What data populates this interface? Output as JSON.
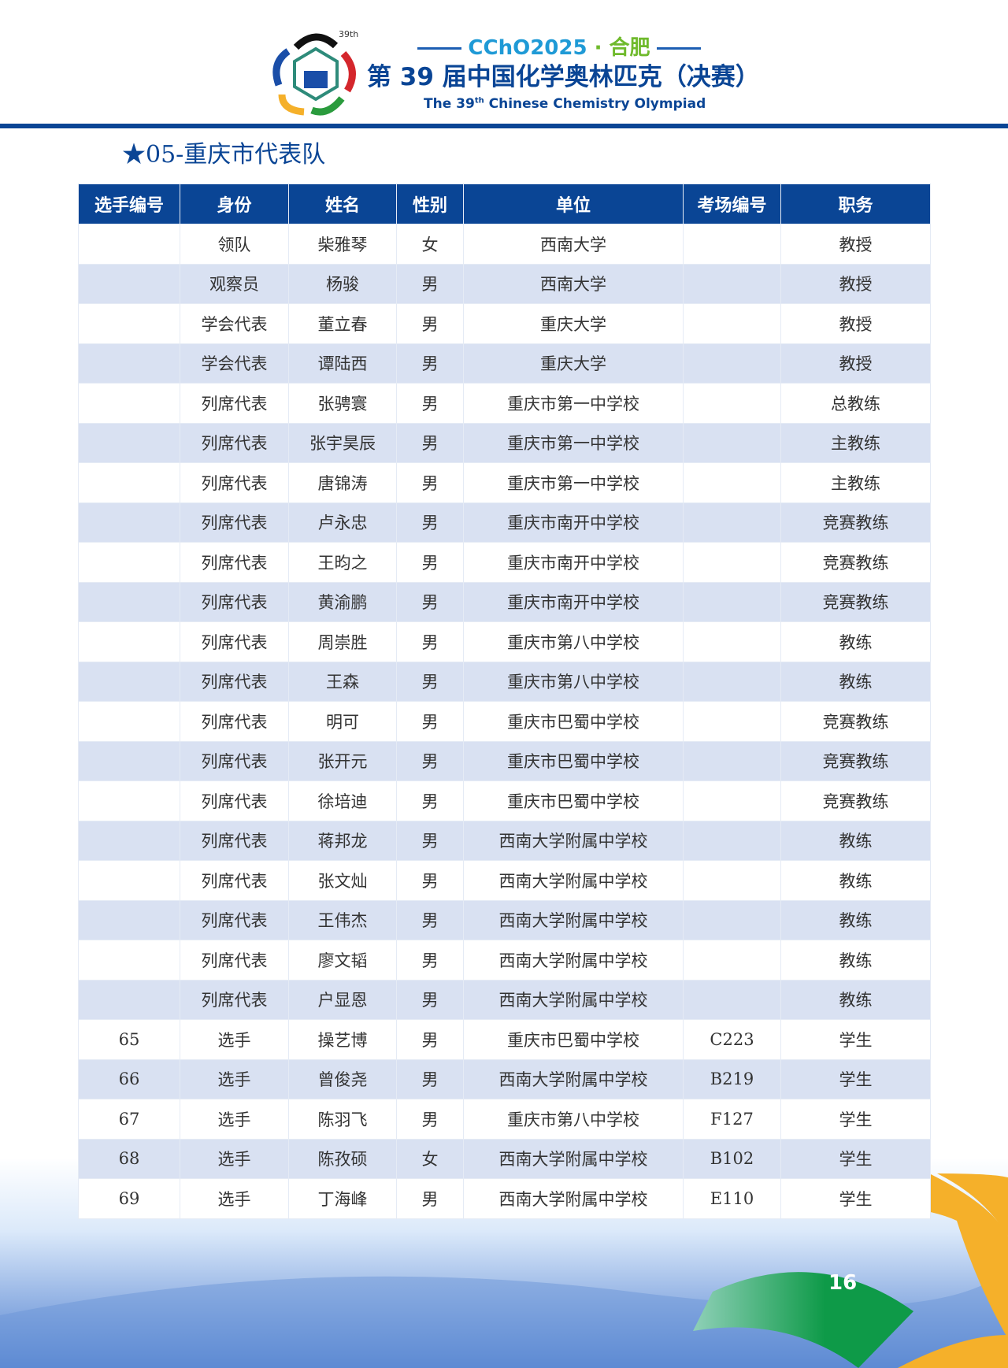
{
  "header": {
    "logo_text": "39th",
    "event_code": "CChO2025",
    "city": "合肥",
    "title_cn": "第 39 届中国化学奥林匹克（决赛）",
    "title_en_prefix": "The 39",
    "title_en_sup": "th",
    "title_en_suffix": " Chinese Chemistry Olympiad"
  },
  "section_title": "★05-重庆市代表队",
  "table": {
    "columns": [
      "选手编号",
      "身份",
      "姓名",
      "性别",
      "单位",
      "考场编号",
      "职务"
    ],
    "rows": [
      [
        "",
        "领队",
        "柴雅琴",
        "女",
        "西南大学",
        "",
        "教授"
      ],
      [
        "",
        "观察员",
        "杨骏",
        "男",
        "西南大学",
        "",
        "教授"
      ],
      [
        "",
        "学会代表",
        "董立春",
        "男",
        "重庆大学",
        "",
        "教授"
      ],
      [
        "",
        "学会代表",
        "谭陆西",
        "男",
        "重庆大学",
        "",
        "教授"
      ],
      [
        "",
        "列席代表",
        "张骋寰",
        "男",
        "重庆市第一中学校",
        "",
        "总教练"
      ],
      [
        "",
        "列席代表",
        "张宇昊辰",
        "男",
        "重庆市第一中学校",
        "",
        "主教练"
      ],
      [
        "",
        "列席代表",
        "唐锦涛",
        "男",
        "重庆市第一中学校",
        "",
        "主教练"
      ],
      [
        "",
        "列席代表",
        "卢永忠",
        "男",
        "重庆市南开中学校",
        "",
        "竞赛教练"
      ],
      [
        "",
        "列席代表",
        "王昀之",
        "男",
        "重庆市南开中学校",
        "",
        "竞赛教练"
      ],
      [
        "",
        "列席代表",
        "黄渝鹏",
        "男",
        "重庆市南开中学校",
        "",
        "竞赛教练"
      ],
      [
        "",
        "列席代表",
        "周崇胜",
        "男",
        "重庆市第八中学校",
        "",
        "教练"
      ],
      [
        "",
        "列席代表",
        "王森",
        "男",
        "重庆市第八中学校",
        "",
        "教练"
      ],
      [
        "",
        "列席代表",
        "明可",
        "男",
        "重庆市巴蜀中学校",
        "",
        "竞赛教练"
      ],
      [
        "",
        "列席代表",
        "张开元",
        "男",
        "重庆市巴蜀中学校",
        "",
        "竞赛教练"
      ],
      [
        "",
        "列席代表",
        "徐培迪",
        "男",
        "重庆市巴蜀中学校",
        "",
        "竞赛教练"
      ],
      [
        "",
        "列席代表",
        "蒋邦龙",
        "男",
        "西南大学附属中学校",
        "",
        "教练"
      ],
      [
        "",
        "列席代表",
        "张文灿",
        "男",
        "西南大学附属中学校",
        "",
        "教练"
      ],
      [
        "",
        "列席代表",
        "王伟杰",
        "男",
        "西南大学附属中学校",
        "",
        "教练"
      ],
      [
        "",
        "列席代表",
        "廖文韬",
        "男",
        "西南大学附属中学校",
        "",
        "教练"
      ],
      [
        "",
        "列席代表",
        "户显恩",
        "男",
        "西南大学附属中学校",
        "",
        "教练"
      ],
      [
        "65",
        "选手",
        "操艺博",
        "男",
        "重庆市巴蜀中学校",
        "C223",
        "学生"
      ],
      [
        "66",
        "选手",
        "曾俊尧",
        "男",
        "西南大学附属中学校",
        "B219",
        "学生"
      ],
      [
        "67",
        "选手",
        "陈羽飞",
        "男",
        "重庆市第八中学校",
        "F127",
        "学生"
      ],
      [
        "68",
        "选手",
        "陈孜硕",
        "女",
        "西南大学附属中学校",
        "B102",
        "学生"
      ],
      [
        "69",
        "选手",
        "丁海峰",
        "男",
        "西南大学附属中学校",
        "E110",
        "学生"
      ]
    ]
  },
  "page_number": "16",
  "colors": {
    "primary": "#0a4595",
    "row_alt": "#d9e1f2",
    "accent_orange": "#f5b02a",
    "accent_green": "#0e9a48"
  }
}
